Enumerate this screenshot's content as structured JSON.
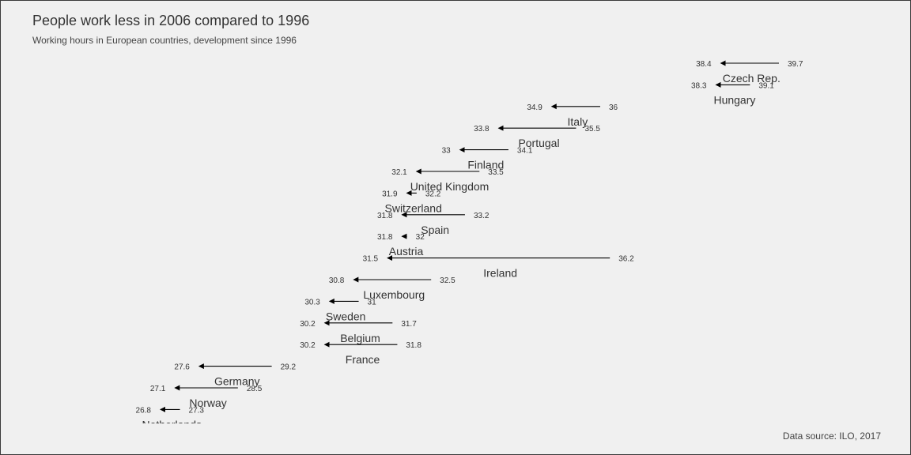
{
  "title": "People work less in 2006 compared to 1996",
  "subtitle": "Working hours in European countries, development since 1996",
  "caption": "Data source: ILO, 2017",
  "colors": {
    "background": "#f0f0f0",
    "arrow": "#000000",
    "text": "#333333"
  },
  "chart_data": {
    "type": "arrow-dumbbell",
    "x_range": [
      26.5,
      40.2
    ],
    "series_names": [
      "1996",
      "2006"
    ],
    "rows": [
      {
        "country": "Czech Rep.",
        "y1996": 39.7,
        "y2006": 38.4
      },
      {
        "country": "Hungary",
        "y1996": 39.1,
        "y2006": 38.3
      },
      {
        "country": "Italy",
        "y1996": 36,
        "y2006": 34.9
      },
      {
        "country": "Portugal",
        "y1996": 35.5,
        "y2006": 33.8
      },
      {
        "country": "Finland",
        "y1996": 34.1,
        "y2006": 33
      },
      {
        "country": "United Kingdom",
        "y1996": 33.5,
        "y2006": 32.1
      },
      {
        "country": "Switzerland",
        "y1996": 32.2,
        "y2006": 31.9
      },
      {
        "country": "Spain",
        "y1996": 33.2,
        "y2006": 31.8
      },
      {
        "country": "Austria",
        "y1996": 32,
        "y2006": 31.8
      },
      {
        "country": "Ireland",
        "y1996": 36.2,
        "y2006": 31.5
      },
      {
        "country": "Luxembourg",
        "y1996": 32.5,
        "y2006": 30.8
      },
      {
        "country": "Sweden",
        "y1996": 31,
        "y2006": 30.3
      },
      {
        "country": "Belgium",
        "y1996": 31.7,
        "y2006": 30.2
      },
      {
        "country": "France",
        "y1996": 31.8,
        "y2006": 30.2
      },
      {
        "country": "Germany",
        "y1996": 29.2,
        "y2006": 27.6
      },
      {
        "country": "Norway",
        "y1996": 28.5,
        "y2006": 27.1
      },
      {
        "country": "Netherlands",
        "y1996": 27.3,
        "y2006": 26.8
      }
    ]
  }
}
